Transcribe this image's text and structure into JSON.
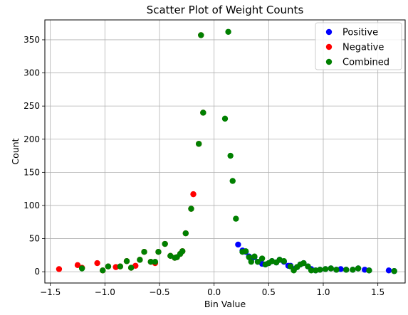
{
  "chart_data": {
    "type": "scatter",
    "title": "Scatter Plot of Weight Counts",
    "xlabel": "Bin Value",
    "ylabel": "Count",
    "xlim": [
      -1.55,
      1.75
    ],
    "ylim": [
      -17,
      380
    ],
    "xticks": [
      -1.5,
      -1.0,
      -0.5,
      0.0,
      0.5,
      1.0,
      1.5
    ],
    "xtick_labels": [
      "−1.5",
      "−1.0",
      "−0.5",
      "0.0",
      "0.5",
      "1.0",
      "1.5"
    ],
    "yticks": [
      0,
      50,
      100,
      150,
      200,
      250,
      300,
      350
    ],
    "ytick_labels": [
      "0",
      "50",
      "100",
      "150",
      "200",
      "250",
      "300",
      "350"
    ],
    "grid": true,
    "legend_position": "top-right",
    "series": [
      {
        "name": "Positive",
        "color": "#0000ff",
        "points": [
          [
            0.22,
            41
          ],
          [
            0.26,
            32
          ],
          [
            0.29,
            30
          ],
          [
            0.32,
            23
          ],
          [
            0.34,
            18
          ],
          [
            0.37,
            22
          ],
          [
            0.4,
            15
          ],
          [
            0.44,
            12
          ],
          [
            0.47,
            11
          ],
          [
            0.5,
            13
          ],
          [
            0.53,
            16
          ],
          [
            0.57,
            14
          ],
          [
            0.6,
            18
          ],
          [
            0.64,
            15
          ],
          [
            0.68,
            9
          ],
          [
            0.7,
            9
          ],
          [
            0.73,
            4
          ],
          [
            0.76,
            7
          ],
          [
            0.79,
            11
          ],
          [
            0.82,
            13
          ],
          [
            0.86,
            8
          ],
          [
            0.89,
            4
          ],
          [
            0.93,
            2
          ],
          [
            0.97,
            3
          ],
          [
            1.02,
            4
          ],
          [
            1.07,
            5
          ],
          [
            1.12,
            3
          ],
          [
            1.16,
            4
          ],
          [
            1.21,
            3
          ],
          [
            1.27,
            3
          ],
          [
            1.32,
            5
          ],
          [
            1.38,
            3
          ],
          [
            1.42,
            2
          ],
          [
            1.6,
            2
          ],
          [
            1.65,
            1
          ]
        ]
      },
      {
        "name": "Negative",
        "color": "#ff0000",
        "points": [
          [
            -1.42,
            4
          ],
          [
            -1.25,
            10
          ],
          [
            -1.21,
            6
          ],
          [
            -1.07,
            13
          ],
          [
            -1.02,
            2
          ],
          [
            -0.97,
            8
          ],
          [
            -0.9,
            7
          ],
          [
            -0.86,
            8
          ],
          [
            -0.8,
            16
          ],
          [
            -0.76,
            6
          ],
          [
            -0.72,
            9
          ],
          [
            -0.68,
            18
          ],
          [
            -0.64,
            30
          ],
          [
            -0.58,
            15
          ],
          [
            -0.54,
            13
          ],
          [
            -0.51,
            30
          ],
          [
            -0.45,
            42
          ],
          [
            -0.4,
            24
          ],
          [
            -0.36,
            21
          ],
          [
            -0.34,
            22
          ],
          [
            -0.31,
            27
          ],
          [
            -0.29,
            31
          ],
          [
            -0.26,
            58
          ],
          [
            -0.21,
            95
          ],
          [
            -0.19,
            117
          ],
          [
            -0.14,
            193
          ],
          [
            -0.12,
            357
          ],
          [
            -0.1,
            240
          ]
        ]
      },
      {
        "name": "Combined",
        "color": "#008000",
        "points": [
          [
            -1.21,
            5
          ],
          [
            -1.02,
            2
          ],
          [
            -0.97,
            8
          ],
          [
            -0.86,
            8
          ],
          [
            -0.8,
            16
          ],
          [
            -0.76,
            6
          ],
          [
            -0.68,
            18
          ],
          [
            -0.64,
            30
          ],
          [
            -0.58,
            15
          ],
          [
            -0.54,
            15
          ],
          [
            -0.51,
            30
          ],
          [
            -0.45,
            42
          ],
          [
            -0.4,
            24
          ],
          [
            -0.36,
            21
          ],
          [
            -0.34,
            22
          ],
          [
            -0.31,
            27
          ],
          [
            -0.29,
            31
          ],
          [
            -0.26,
            58
          ],
          [
            -0.21,
            95
          ],
          [
            -0.14,
            193
          ],
          [
            -0.12,
            357
          ],
          [
            -0.1,
            240
          ],
          [
            0.1,
            231
          ],
          [
            0.13,
            362
          ],
          [
            0.15,
            175
          ],
          [
            0.17,
            137
          ],
          [
            0.2,
            80
          ],
          [
            0.26,
            30
          ],
          [
            0.29,
            31
          ],
          [
            0.32,
            22
          ],
          [
            0.34,
            15
          ],
          [
            0.37,
            23
          ],
          [
            0.4,
            15
          ],
          [
            0.44,
            20
          ],
          [
            0.47,
            11
          ],
          [
            0.5,
            13
          ],
          [
            0.53,
            16
          ],
          [
            0.57,
            14
          ],
          [
            0.6,
            18
          ],
          [
            0.64,
            16
          ],
          [
            0.7,
            8
          ],
          [
            0.73,
            2
          ],
          [
            0.76,
            7
          ],
          [
            0.79,
            11
          ],
          [
            0.82,
            13
          ],
          [
            0.86,
            8
          ],
          [
            0.89,
            2
          ],
          [
            0.93,
            2
          ],
          [
            0.97,
            3
          ],
          [
            1.02,
            4
          ],
          [
            1.07,
            5
          ],
          [
            1.12,
            3
          ],
          [
            1.21,
            3
          ],
          [
            1.27,
            3
          ],
          [
            1.32,
            5
          ],
          [
            1.42,
            2
          ],
          [
            1.65,
            1
          ]
        ]
      }
    ]
  }
}
